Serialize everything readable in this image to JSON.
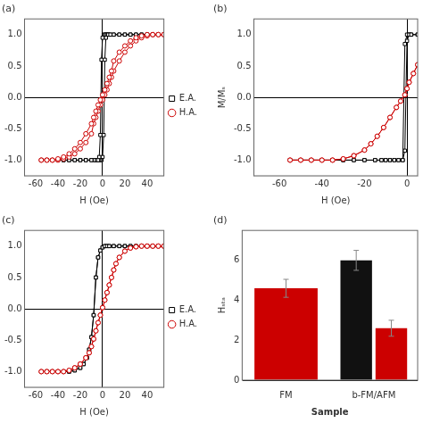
{
  "chart_data": [
    {
      "type": "line",
      "title": "(a)",
      "xlabel": "H (Oe)",
      "xlim": [
        -70,
        55
      ],
      "ylim": [
        -1.25,
        1.25
      ],
      "xticks": [
        -60,
        -40,
        -20,
        0,
        20,
        40
      ],
      "yticks": [
        {
          "value": -1.0,
          "label": "-1.0"
        },
        {
          "value": -0.5,
          "label": "-0.5"
        },
        {
          "value": 0.0,
          "label": "0.0"
        },
        0.5,
        {
          "value": 1.0,
          "label": "1.0"
        }
      ],
      "grid": false,
      "legend": "right",
      "series": [
        {
          "color": "#cc0000",
          "marker": "circle",
          "x": [
            -55,
            -50,
            -45,
            -40,
            -35,
            -30,
            -25,
            -20,
            -15,
            -10,
            -8,
            -6,
            -4,
            -2,
            0,
            2,
            4,
            6,
            8,
            10,
            15,
            20,
            25,
            30,
            35,
            40,
            45,
            50,
            55
          ],
          "values": [
            -1.0,
            -1.0,
            -1.0,
            -0.98,
            -0.95,
            -0.9,
            -0.82,
            -0.72,
            -0.58,
            -0.42,
            -0.32,
            -0.22,
            -0.12,
            -0.04,
            0.04,
            0.12,
            0.22,
            0.32,
            0.42,
            0.58,
            0.72,
            0.82,
            0.9,
            0.95,
            0.98,
            1.0,
            1.0,
            1.0,
            1.0
          ]
        },
        {
          "name": "H.A.",
          "color": "#cc0000",
          "marker": "circle",
          "x": [
            55,
            50,
            45,
            40,
            35,
            30,
            25,
            20,
            15,
            10,
            8,
            6,
            4,
            2,
            0,
            -2,
            -4,
            -6,
            -8,
            -10,
            -15,
            -20,
            -25,
            -30,
            -35,
            -40,
            -45,
            -50,
            -55
          ],
          "values": [
            1.0,
            1.0,
            1.0,
            0.98,
            0.95,
            0.9,
            0.82,
            0.72,
            0.58,
            0.42,
            0.32,
            0.22,
            0.12,
            0.04,
            -0.04,
            -0.12,
            -0.22,
            -0.32,
            -0.42,
            -0.58,
            -0.72,
            -0.82,
            -0.9,
            -0.95,
            -0.98,
            -1.0,
            -1.0,
            -1.0,
            -1.0
          ]
        },
        {
          "color": "#000000",
          "marker": "square",
          "x": [
            -55,
            -50,
            -45,
            -40,
            -35,
            -30,
            -25,
            -20,
            -15,
            -10,
            -7,
            -5,
            -4,
            -3,
            -2,
            -1,
            0,
            1,
            2,
            3,
            4,
            5,
            7,
            10,
            15,
            20,
            25,
            30,
            35,
            40,
            45,
            50,
            55
          ],
          "values": [
            -1.0,
            -1.0,
            -1.0,
            -1.0,
            -1.0,
            -1.0,
            -1.0,
            -1.0,
            -1.0,
            -1.0,
            -1.0,
            -1.0,
            -1.0,
            -0.95,
            -0.6,
            0.6,
            0.95,
            1.0,
            1.0,
            1.0,
            1.0,
            1.0,
            1.0,
            1.0,
            1.0,
            1.0,
            1.0,
            1.0,
            1.0,
            1.0,
            1.0,
            1.0,
            1.0
          ]
        },
        {
          "name": "E.A.",
          "color": "#000000",
          "marker": "square",
          "x": [
            55,
            50,
            45,
            40,
            35,
            30,
            25,
            20,
            15,
            10,
            7,
            5,
            4,
            3,
            2,
            1,
            0,
            -1,
            -2,
            -3,
            -4,
            -5,
            -7,
            -10,
            -15,
            -20,
            -25,
            -30,
            -35,
            -40,
            -45,
            -50,
            -55
          ],
          "values": [
            1.0,
            1.0,
            1.0,
            1.0,
            1.0,
            1.0,
            1.0,
            1.0,
            1.0,
            1.0,
            1.0,
            1.0,
            1.0,
            0.95,
            0.6,
            -0.6,
            -0.95,
            -1.0,
            -1.0,
            -1.0,
            -1.0,
            -1.0,
            -1.0,
            -1.0,
            -1.0,
            -1.0,
            -1.0,
            -1.0,
            -1.0,
            -1.0,
            -1.0,
            -1.0,
            -1.0
          ]
        }
      ]
    },
    {
      "type": "line",
      "title": "(b)",
      "xlabel": "H (Oe)",
      "ylabel": "M/Mₛ",
      "xlim": [
        -72,
        5
      ],
      "ylim": [
        -1.25,
        1.25
      ],
      "xticks": [
        -60,
        -40,
        -20,
        0
      ],
      "yticks": [
        {
          "value": -1.0,
          "label": "-1.0"
        },
        {
          "value": -0.5,
          "label": "-0.5"
        },
        {
          "value": 0.0,
          "label": "0.0"
        },
        0.5,
        {
          "value": 1.0,
          "label": "1.0"
        }
      ],
      "grid": false,
      "series": [
        {
          "color": "#cc0000",
          "marker": "circle",
          "x": [
            -55,
            -50,
            -45,
            -40,
            -35,
            -30,
            -25,
            -20,
            -17,
            -14,
            -11,
            -8,
            -5,
            -3,
            -1,
            0,
            1,
            3,
            5
          ],
          "values": [
            -1.0,
            -1.0,
            -1.0,
            -1.0,
            -1.0,
            -0.98,
            -0.93,
            -0.84,
            -0.74,
            -0.62,
            -0.48,
            -0.32,
            -0.16,
            -0.06,
            0.04,
            0.14,
            0.24,
            0.38,
            0.52
          ]
        },
        {
          "name": "H.A.",
          "color": "#cc0000",
          "marker": "circle",
          "x": [
            5,
            3,
            1,
            0,
            -1,
            -3,
            -5,
            -8,
            -11,
            -14,
            -17,
            -20,
            -25,
            -30,
            -35,
            -40,
            -45,
            -50,
            -55
          ],
          "values": [
            0.52,
            0.38,
            0.24,
            0.14,
            0.04,
            -0.06,
            -0.16,
            -0.32,
            -0.48,
            -0.62,
            -0.74,
            -0.84,
            -0.93,
            -0.98,
            -1.0,
            -1.0,
            -1.0,
            -1.0,
            -1.0
          ]
        },
        {
          "color": "#000000",
          "marker": "square",
          "x": [
            -55,
            -50,
            -45,
            -40,
            -35,
            -30,
            -25,
            -20,
            -15,
            -12,
            -10,
            -8,
            -6,
            -4,
            -2,
            -1,
            0,
            1,
            2,
            5
          ],
          "values": [
            -1.0,
            -1.0,
            -1.0,
            -1.0,
            -1.0,
            -1.0,
            -1.0,
            -1.0,
            -1.0,
            -1.0,
            -1.0,
            -1.0,
            -1.0,
            -1.0,
            -1.0,
            -0.85,
            0.9,
            1.0,
            1.0,
            1.0
          ]
        },
        {
          "name": "E.A.",
          "color": "#000000",
          "marker": "square",
          "x": [
            5,
            2,
            1,
            0,
            -1,
            -2,
            -4,
            -6,
            -8,
            -10,
            -12,
            -15,
            -20,
            -25,
            -30,
            -35,
            -40,
            -45,
            -50,
            -55
          ],
          "values": [
            1.0,
            1.0,
            1.0,
            1.0,
            0.85,
            -1.0,
            -1.0,
            -1.0,
            -1.0,
            -1.0,
            -1.0,
            -1.0,
            -1.0,
            -1.0,
            -1.0,
            -1.0,
            -1.0,
            -1.0,
            -1.0,
            -1.0
          ]
        }
      ]
    },
    {
      "type": "line",
      "title": "(c)",
      "xlabel": "H (Oe)",
      "xlim": [
        -70,
        55
      ],
      "ylim": [
        -1.25,
        1.25
      ],
      "xticks": [
        -60,
        -40,
        -20,
        0,
        20,
        40
      ],
      "yticks": [
        {
          "value": -1.0,
          "label": "-1.0"
        },
        {
          "value": -0.5,
          "label": "-0.5"
        },
        {
          "value": 0.0,
          "label": "0.0"
        },
        0.5,
        {
          "value": 1.0,
          "label": "1.0"
        }
      ],
      "grid": false,
      "legend": "right",
      "series": [
        {
          "color": "#cc0000",
          "marker": "circle",
          "x": [
            -55,
            -50,
            -45,
            -40,
            -35,
            -30,
            -25,
            -20,
            -15,
            -12,
            -10,
            -8,
            -6,
            -4,
            -2,
            0,
            2,
            4,
            6,
            8,
            10,
            12,
            15,
            20,
            25,
            30,
            35,
            40,
            45,
            50,
            55
          ],
          "values": [
            -1.0,
            -1.0,
            -1.0,
            -1.0,
            -1.0,
            -0.98,
            -0.94,
            -0.88,
            -0.78,
            -0.7,
            -0.6,
            -0.48,
            -0.35,
            -0.22,
            -0.1,
            0.02,
            0.14,
            0.26,
            0.38,
            0.5,
            0.62,
            0.72,
            0.82,
            0.92,
            0.97,
            0.99,
            1.0,
            1.0,
            1.0,
            1.0,
            1.0
          ]
        },
        {
          "name": "H.A.",
          "color": "#cc0000",
          "marker": "circle",
          "x": [
            55,
            50,
            45,
            40,
            35,
            30,
            25,
            20,
            15,
            12,
            10,
            8,
            6,
            4,
            2,
            0,
            -2,
            -4,
            -6,
            -8,
            -10,
            -12,
            -15,
            -20,
            -25,
            -30,
            -35,
            -40,
            -45,
            -50,
            -55
          ],
          "values": [
            1.0,
            1.0,
            1.0,
            1.0,
            1.0,
            0.99,
            0.97,
            0.92,
            0.82,
            0.72,
            0.62,
            0.5,
            0.38,
            0.26,
            0.14,
            0.02,
            -0.1,
            -0.22,
            -0.35,
            -0.48,
            -0.6,
            -0.7,
            -0.78,
            -0.88,
            -0.94,
            -0.98,
            -1.0,
            -1.0,
            -1.0,
            -1.0,
            -1.0
          ]
        },
        {
          "color": "#000000",
          "marker": "square",
          "x": [
            -55,
            -50,
            -45,
            -40,
            -35,
            -30,
            -25,
            -20,
            -17,
            -14,
            -12,
            -10,
            -8,
            -6,
            -4,
            -2,
            0,
            2,
            4,
            6,
            10,
            15,
            20,
            25,
            30,
            35,
            40,
            45,
            50,
            55
          ],
          "values": [
            -1.0,
            -1.0,
            -1.0,
            -1.0,
            -1.0,
            -1.0,
            -0.98,
            -0.94,
            -0.88,
            -0.78,
            -0.65,
            -0.45,
            -0.1,
            0.5,
            0.82,
            0.93,
            0.98,
            1.0,
            1.0,
            1.0,
            1.0,
            1.0,
            1.0,
            1.0,
            1.0,
            1.0,
            1.0,
            1.0,
            1.0,
            1.0
          ]
        },
        {
          "name": "E.A.",
          "color": "#000000",
          "marker": "square",
          "x": [
            55,
            50,
            45,
            40,
            35,
            30,
            25,
            20,
            15,
            10,
            6,
            4,
            2,
            0,
            -2,
            -4,
            -6,
            -8,
            -10,
            -12,
            -14,
            -17,
            -20,
            -25,
            -30,
            -35,
            -40,
            -45,
            -50,
            -55
          ],
          "values": [
            1.0,
            1.0,
            1.0,
            1.0,
            1.0,
            1.0,
            1.0,
            1.0,
            1.0,
            1.0,
            1.0,
            1.0,
            1.0,
            0.98,
            0.93,
            0.82,
            0.5,
            -0.1,
            -0.45,
            -0.65,
            -0.78,
            -0.88,
            -0.94,
            -0.98,
            -1.0,
            -1.0,
            -1.0,
            -1.0,
            -1.0,
            -1.0
          ]
        }
      ]
    },
    {
      "type": "bar",
      "title": "(d)",
      "xlabel": "Sample",
      "ylabel": "Hₛₜₐ",
      "categories": [
        "FM",
        "b-FM/AFM"
      ],
      "ylim": [
        0,
        7.5
      ],
      "yticks": [
        0,
        2,
        4,
        6
      ],
      "grid": false,
      "series": [
        {
          "color": "#111111",
          "values": [
            null,
            6.0
          ],
          "errors": [
            null,
            0.5
          ]
        },
        {
          "color": "#cc0000",
          "values": [
            4.6,
            2.6
          ],
          "errors": [
            0.45,
            0.4
          ]
        }
      ]
    }
  ]
}
